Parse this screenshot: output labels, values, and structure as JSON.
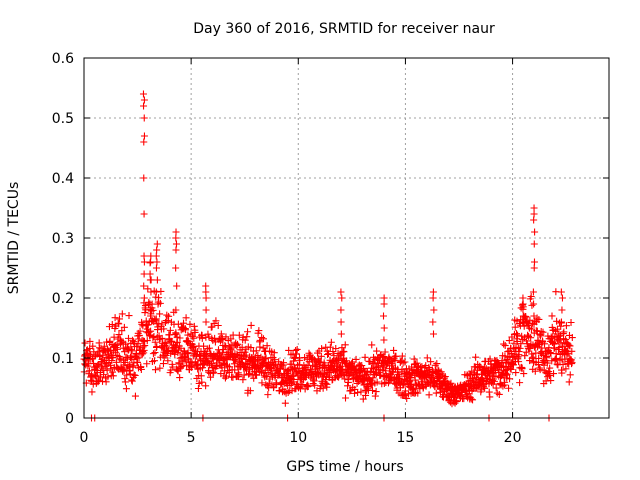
{
  "chart_data": {
    "type": "scatter",
    "title": "Day 360 of 2016, SRMTID for receiver naur",
    "xlabel": "GPS time / hours",
    "ylabel": "SRMTID / TECUs",
    "xlim": [
      0,
      24.5
    ],
    "ylim": [
      0,
      0.6
    ],
    "xticks": [
      0,
      5,
      10,
      15,
      20
    ],
    "xtick_labels": [
      "0",
      "5",
      "10",
      "15",
      "20"
    ],
    "yticks": [
      0,
      0.1,
      0.2,
      0.3,
      0.4,
      0.5,
      0.6
    ],
    "ytick_labels": [
      "0",
      "0.1",
      "0.2",
      "0.3",
      "0.4",
      "0.5",
      "0.6"
    ],
    "grid": true,
    "marker": "+",
    "marker_color": "#ff0000",
    "series": [
      {
        "name": "SRMTID",
        "profile": [
          [
            0.0,
            0.1
          ],
          [
            0.5,
            0.085
          ],
          [
            1.0,
            0.09
          ],
          [
            1.5,
            0.12
          ],
          [
            2.0,
            0.1
          ],
          [
            2.5,
            0.11
          ],
          [
            2.8,
            0.14
          ],
          [
            3.0,
            0.16
          ],
          [
            3.5,
            0.15
          ],
          [
            4.0,
            0.12
          ],
          [
            4.5,
            0.12
          ],
          [
            5.0,
            0.11
          ],
          [
            5.5,
            0.1
          ],
          [
            6.0,
            0.11
          ],
          [
            6.5,
            0.11
          ],
          [
            7.0,
            0.1
          ],
          [
            8.0,
            0.095
          ],
          [
            8.5,
            0.09
          ],
          [
            9.0,
            0.07
          ],
          [
            9.5,
            0.075
          ],
          [
            10.0,
            0.08
          ],
          [
            11.0,
            0.08
          ],
          [
            11.5,
            0.085
          ],
          [
            12.0,
            0.085
          ],
          [
            12.5,
            0.07
          ],
          [
            13.0,
            0.065
          ],
          [
            14.0,
            0.085
          ],
          [
            14.5,
            0.075
          ],
          [
            15.0,
            0.065
          ],
          [
            16.0,
            0.07
          ],
          [
            16.5,
            0.065
          ],
          [
            17.0,
            0.045
          ],
          [
            17.5,
            0.04
          ],
          [
            18.0,
            0.055
          ],
          [
            18.5,
            0.07
          ],
          [
            19.0,
            0.07
          ],
          [
            19.5,
            0.08
          ],
          [
            20.0,
            0.11
          ],
          [
            20.5,
            0.14
          ],
          [
            21.0,
            0.13
          ],
          [
            21.5,
            0.1
          ],
          [
            22.0,
            0.13
          ],
          [
            22.5,
            0.11
          ],
          [
            22.8,
            0.1
          ]
        ],
        "spikes": [
          {
            "x": 2.8,
            "values": [
              0.54,
              0.53,
              0.52,
              0.5,
              0.47,
              0.46,
              0.4,
              0.34,
              0.27,
              0.26,
              0.24,
              0.22,
              0.2
            ]
          },
          {
            "x": 3.1,
            "values": [
              0.27,
              0.26,
              0.24,
              0.23,
              0.21,
              0.19,
              0.17
            ]
          },
          {
            "x": 3.4,
            "values": [
              0.29,
              0.28,
              0.27,
              0.26,
              0.25,
              0.23,
              0.21
            ]
          },
          {
            "x": 4.3,
            "values": [
              0.31,
              0.3,
              0.29,
              0.28,
              0.25,
              0.22,
              0.18
            ]
          },
          {
            "x": 5.7,
            "values": [
              0.22,
              0.21,
              0.2,
              0.18,
              0.16
            ]
          },
          {
            "x": 12.0,
            "values": [
              0.21,
              0.2,
              0.18,
              0.16,
              0.14
            ]
          },
          {
            "x": 14.0,
            "values": [
              0.2,
              0.19,
              0.17,
              0.15,
              0.13
            ]
          },
          {
            "x": 16.3,
            "values": [
              0.21,
              0.2,
              0.18,
              0.16,
              0.14
            ]
          },
          {
            "x": 20.5,
            "values": [
              0.2,
              0.19,
              0.17,
              0.16
            ]
          },
          {
            "x": 21.0,
            "values": [
              0.35,
              0.34,
              0.33,
              0.31,
              0.29,
              0.26,
              0.25,
              0.21,
              0.19,
              0.17
            ]
          },
          {
            "x": 22.3,
            "values": [
              0.21,
              0.2,
              0.18,
              0.16
            ]
          }
        ],
        "zero_points": [
          0.35,
          0.5,
          5.55,
          9.5,
          14.0,
          18.9,
          21.7
        ]
      }
    ]
  }
}
